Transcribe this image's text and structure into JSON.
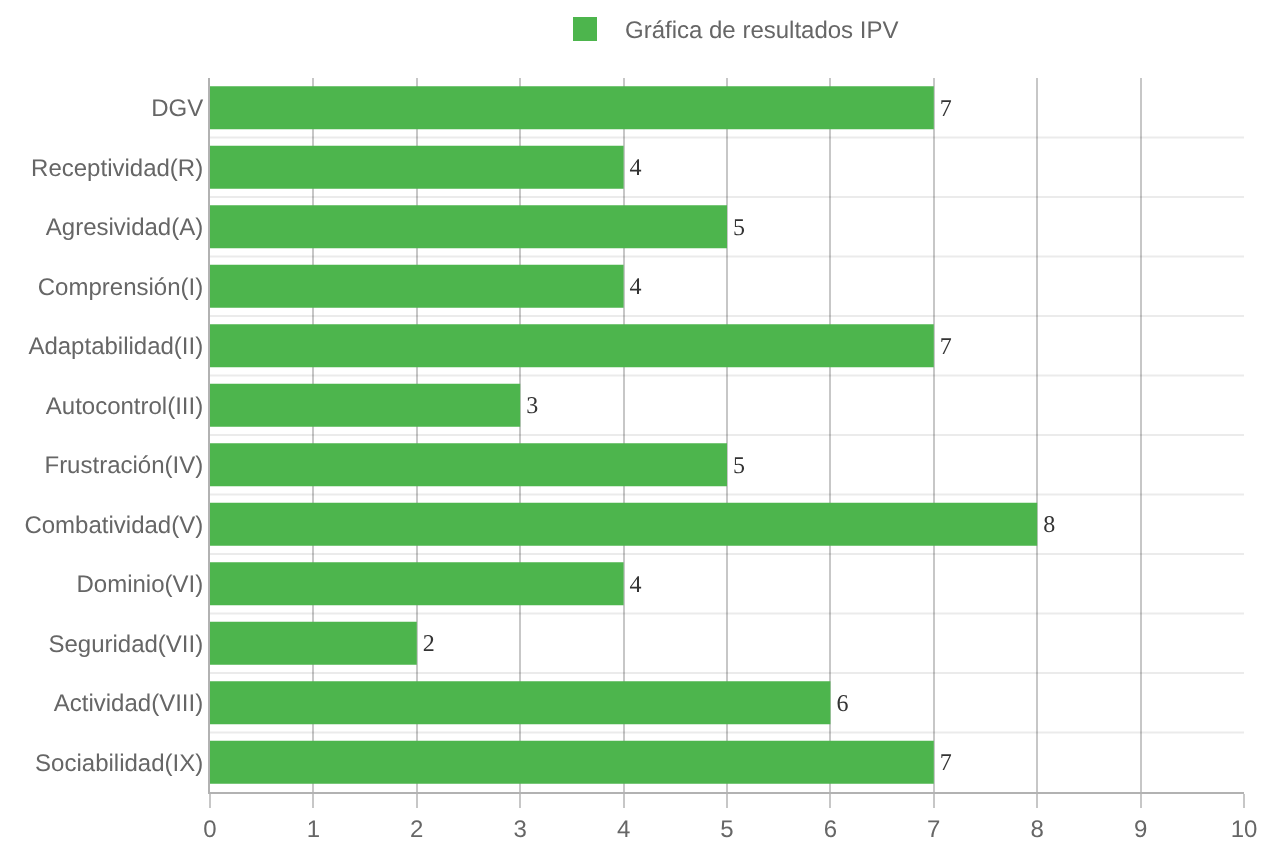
{
  "chart_data": {
    "type": "bar",
    "orientation": "horizontal",
    "categories": [
      "DGV",
      "Receptividad(R)",
      "Agresividad(A)",
      "Comprensión(I)",
      "Adaptabilidad(II)",
      "Autocontrol(III)",
      "Frustración(IV)",
      "Combatividad(V)",
      "Dominio(VI)",
      "Seguridad(VII)",
      "Actividad(VIII)",
      "Sociabilidad(IX)"
    ],
    "series": [
      {
        "name": "Gráfica de resultados IPV",
        "color": "#4db54d",
        "values": [
          7,
          4,
          5,
          4,
          7,
          3,
          5,
          8,
          4,
          2,
          6,
          7
        ]
      }
    ],
    "xlim": [
      0,
      10
    ],
    "xticks": [
      0,
      1,
      2,
      3,
      4,
      5,
      6,
      7,
      8,
      9,
      10
    ],
    "grid": true,
    "legend": "top",
    "data_labels": true
  }
}
